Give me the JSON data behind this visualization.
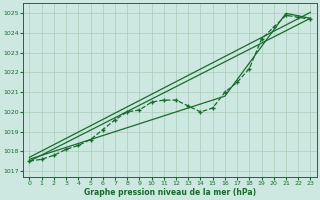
{
  "title": "Graphe pression niveau de la mer (hPa)",
  "bg_color": "#cce8e0",
  "grid_color": "#aaccbb",
  "line_color": "#1a6b2e",
  "xlim": [
    -0.5,
    23.5
  ],
  "ylim": [
    1016.7,
    1025.5
  ],
  "yticks": [
    1017,
    1018,
    1019,
    1020,
    1021,
    1022,
    1023,
    1024,
    1025
  ],
  "xticks": [
    0,
    1,
    2,
    3,
    4,
    5,
    6,
    7,
    8,
    9,
    10,
    11,
    12,
    13,
    14,
    15,
    16,
    17,
    18,
    19,
    20,
    21,
    22,
    23
  ],
  "main_x": [
    0,
    1,
    2,
    3,
    4,
    5,
    6,
    7,
    8,
    9,
    10,
    11,
    12,
    13,
    14,
    15,
    16,
    17,
    18,
    19,
    20,
    21,
    22,
    23
  ],
  "main_y": [
    1017.5,
    1017.6,
    1017.8,
    1018.1,
    1018.3,
    1018.6,
    1019.1,
    1019.6,
    1020.0,
    1020.1,
    1020.5,
    1020.6,
    1020.6,
    1020.3,
    1020.0,
    1020.2,
    1021.0,
    1021.5,
    1022.2,
    1023.7,
    1024.3,
    1024.9,
    1024.8,
    1024.7
  ],
  "line1_x": [
    0,
    23
  ],
  "line1_y": [
    1017.5,
    1024.75
  ],
  "line2_x": [
    0,
    23
  ],
  "line2_y": [
    1017.7,
    1025.05
  ],
  "line3_x": [
    0,
    16,
    21,
    23
  ],
  "line3_y": [
    1017.6,
    1020.8,
    1025.0,
    1024.75
  ]
}
